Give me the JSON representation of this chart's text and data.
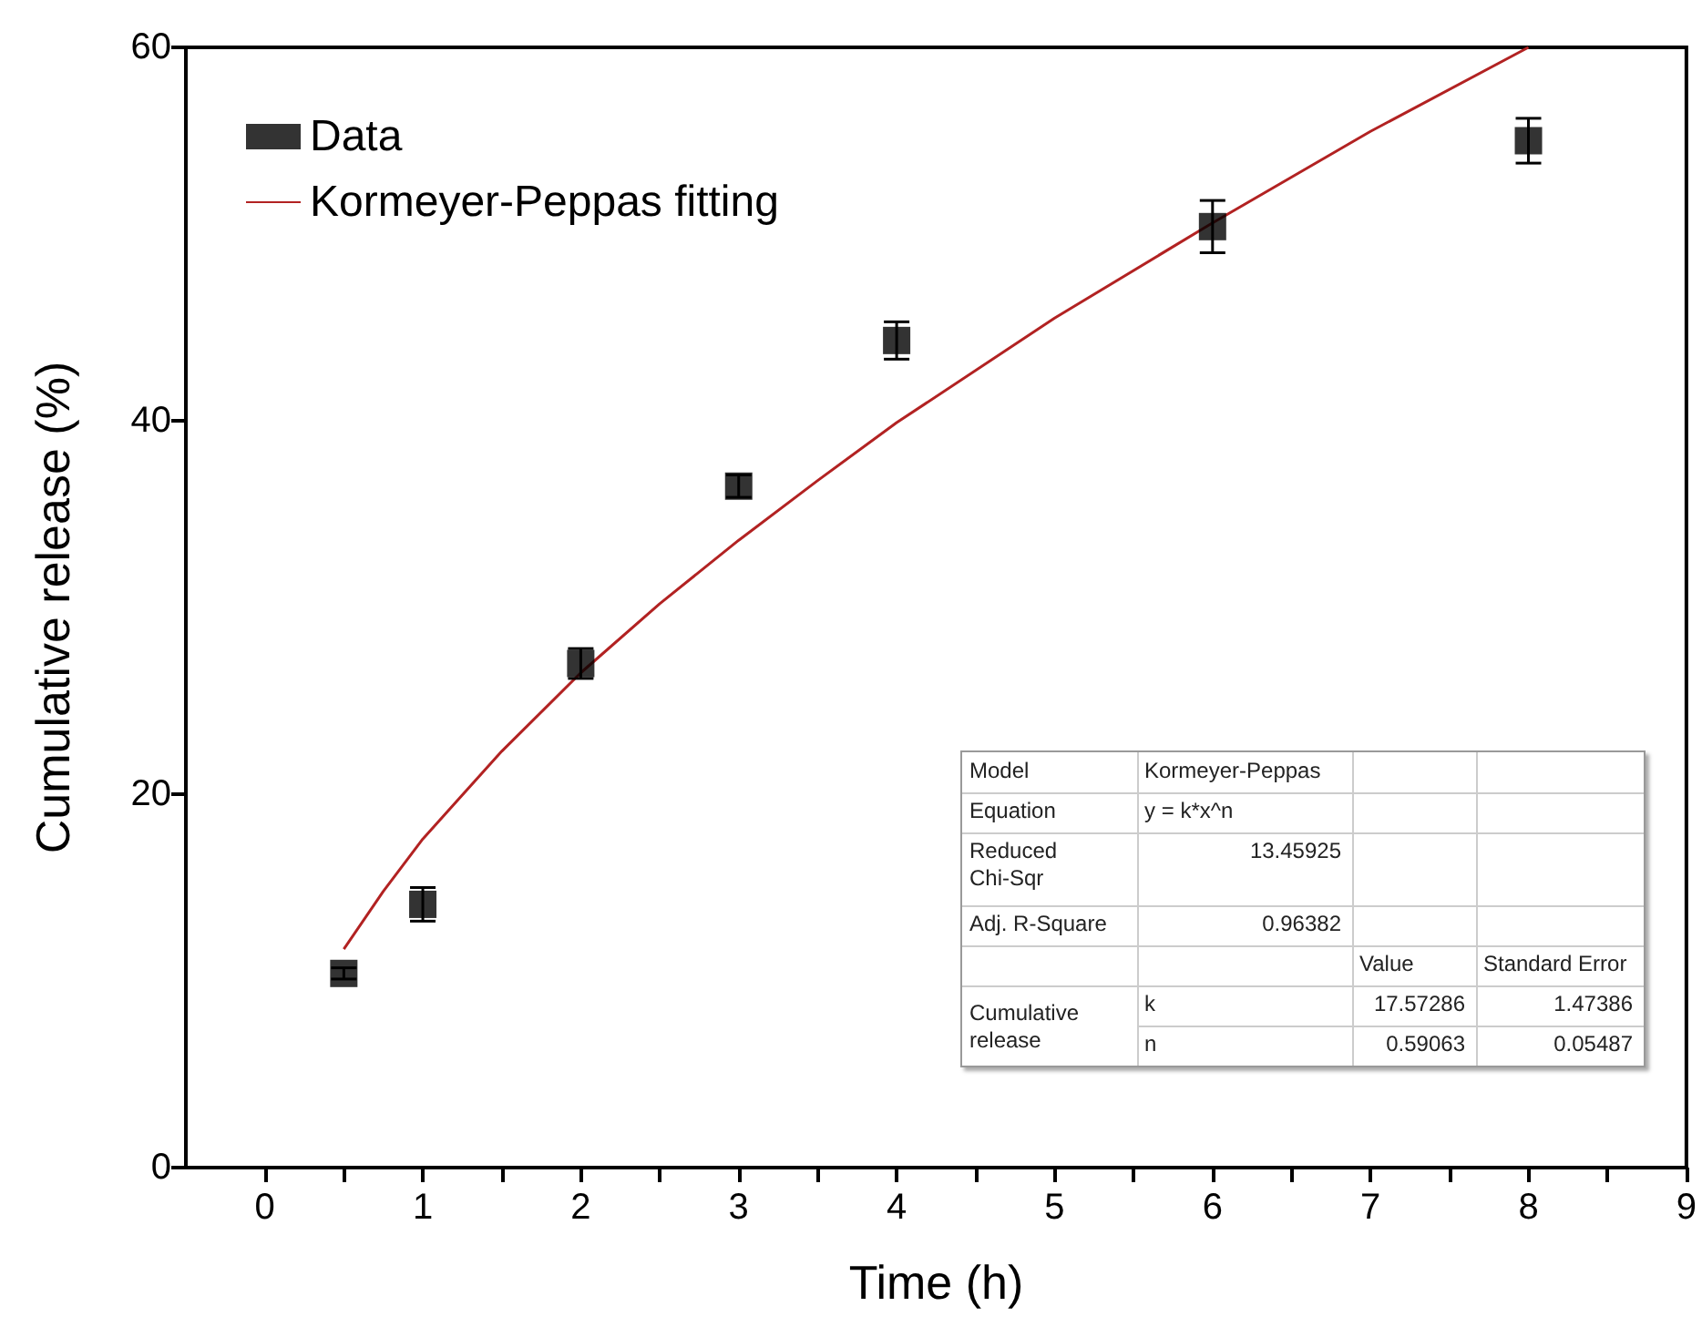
{
  "chart_data": {
    "type": "scatter",
    "xlabel": "Time (h)",
    "ylabel": "Cumulative release (%)",
    "xlim": [
      -0.5,
      9
    ],
    "ylim": [
      0,
      60
    ],
    "xticks": [
      0,
      {
        "value": 0.5,
        "label": null
      },
      1,
      {
        "value": 1.5,
        "label": null
      },
      2,
      {
        "value": 2.5,
        "label": null
      },
      3,
      {
        "value": 3.5,
        "label": null
      },
      4,
      {
        "value": 4.5,
        "label": null
      },
      5,
      {
        "value": 5.5,
        "label": null
      },
      6,
      {
        "value": 6.5,
        "label": null
      },
      7,
      {
        "value": 7.5,
        "label": null
      },
      8,
      {
        "value": 8.5,
        "label": null
      },
      9
    ],
    "yticks": [
      0,
      20,
      40,
      60
    ],
    "grid": false,
    "legend": "top left",
    "series": [
      {
        "name": "Data",
        "color": "#000000",
        "marker": "square",
        "x": [
          0.5,
          1,
          2,
          3,
          4,
          6,
          8
        ],
        "values": [
          10.4,
          14.1,
          27.0,
          36.5,
          44.3,
          50.4,
          55.0
        ],
        "errors": [
          0.3,
          0.9,
          0.8,
          0.6,
          1.0,
          1.4,
          1.2
        ]
      },
      {
        "name": "Kormeyer-Peppas fitting",
        "type": "line",
        "color": "#b22222",
        "marker": "none",
        "line_style": "solid",
        "x": [
          0.5,
          0.75,
          1,
          1.5,
          2,
          2.5,
          3,
          3.5,
          4,
          5,
          6,
          7,
          8
        ],
        "values": [
          11.7,
          14.8,
          17.6,
          22.3,
          26.5,
          30.2,
          33.6,
          36.8,
          39.9,
          45.5,
          50.6,
          55.5,
          60.0
        ]
      }
    ],
    "annotations": [
      "Model",
      "Kormeyer-Peppas",
      "Equation",
      "y = k*x^n",
      "Reduced Chi-Sqr",
      "13.45925",
      "Adj. R-Square",
      "0.96382",
      "Value",
      "Standard Error",
      "Cumulative release",
      "k",
      "17.57286",
      "1.47386",
      "n",
      "0.59063",
      "0.05487"
    ]
  }
}
